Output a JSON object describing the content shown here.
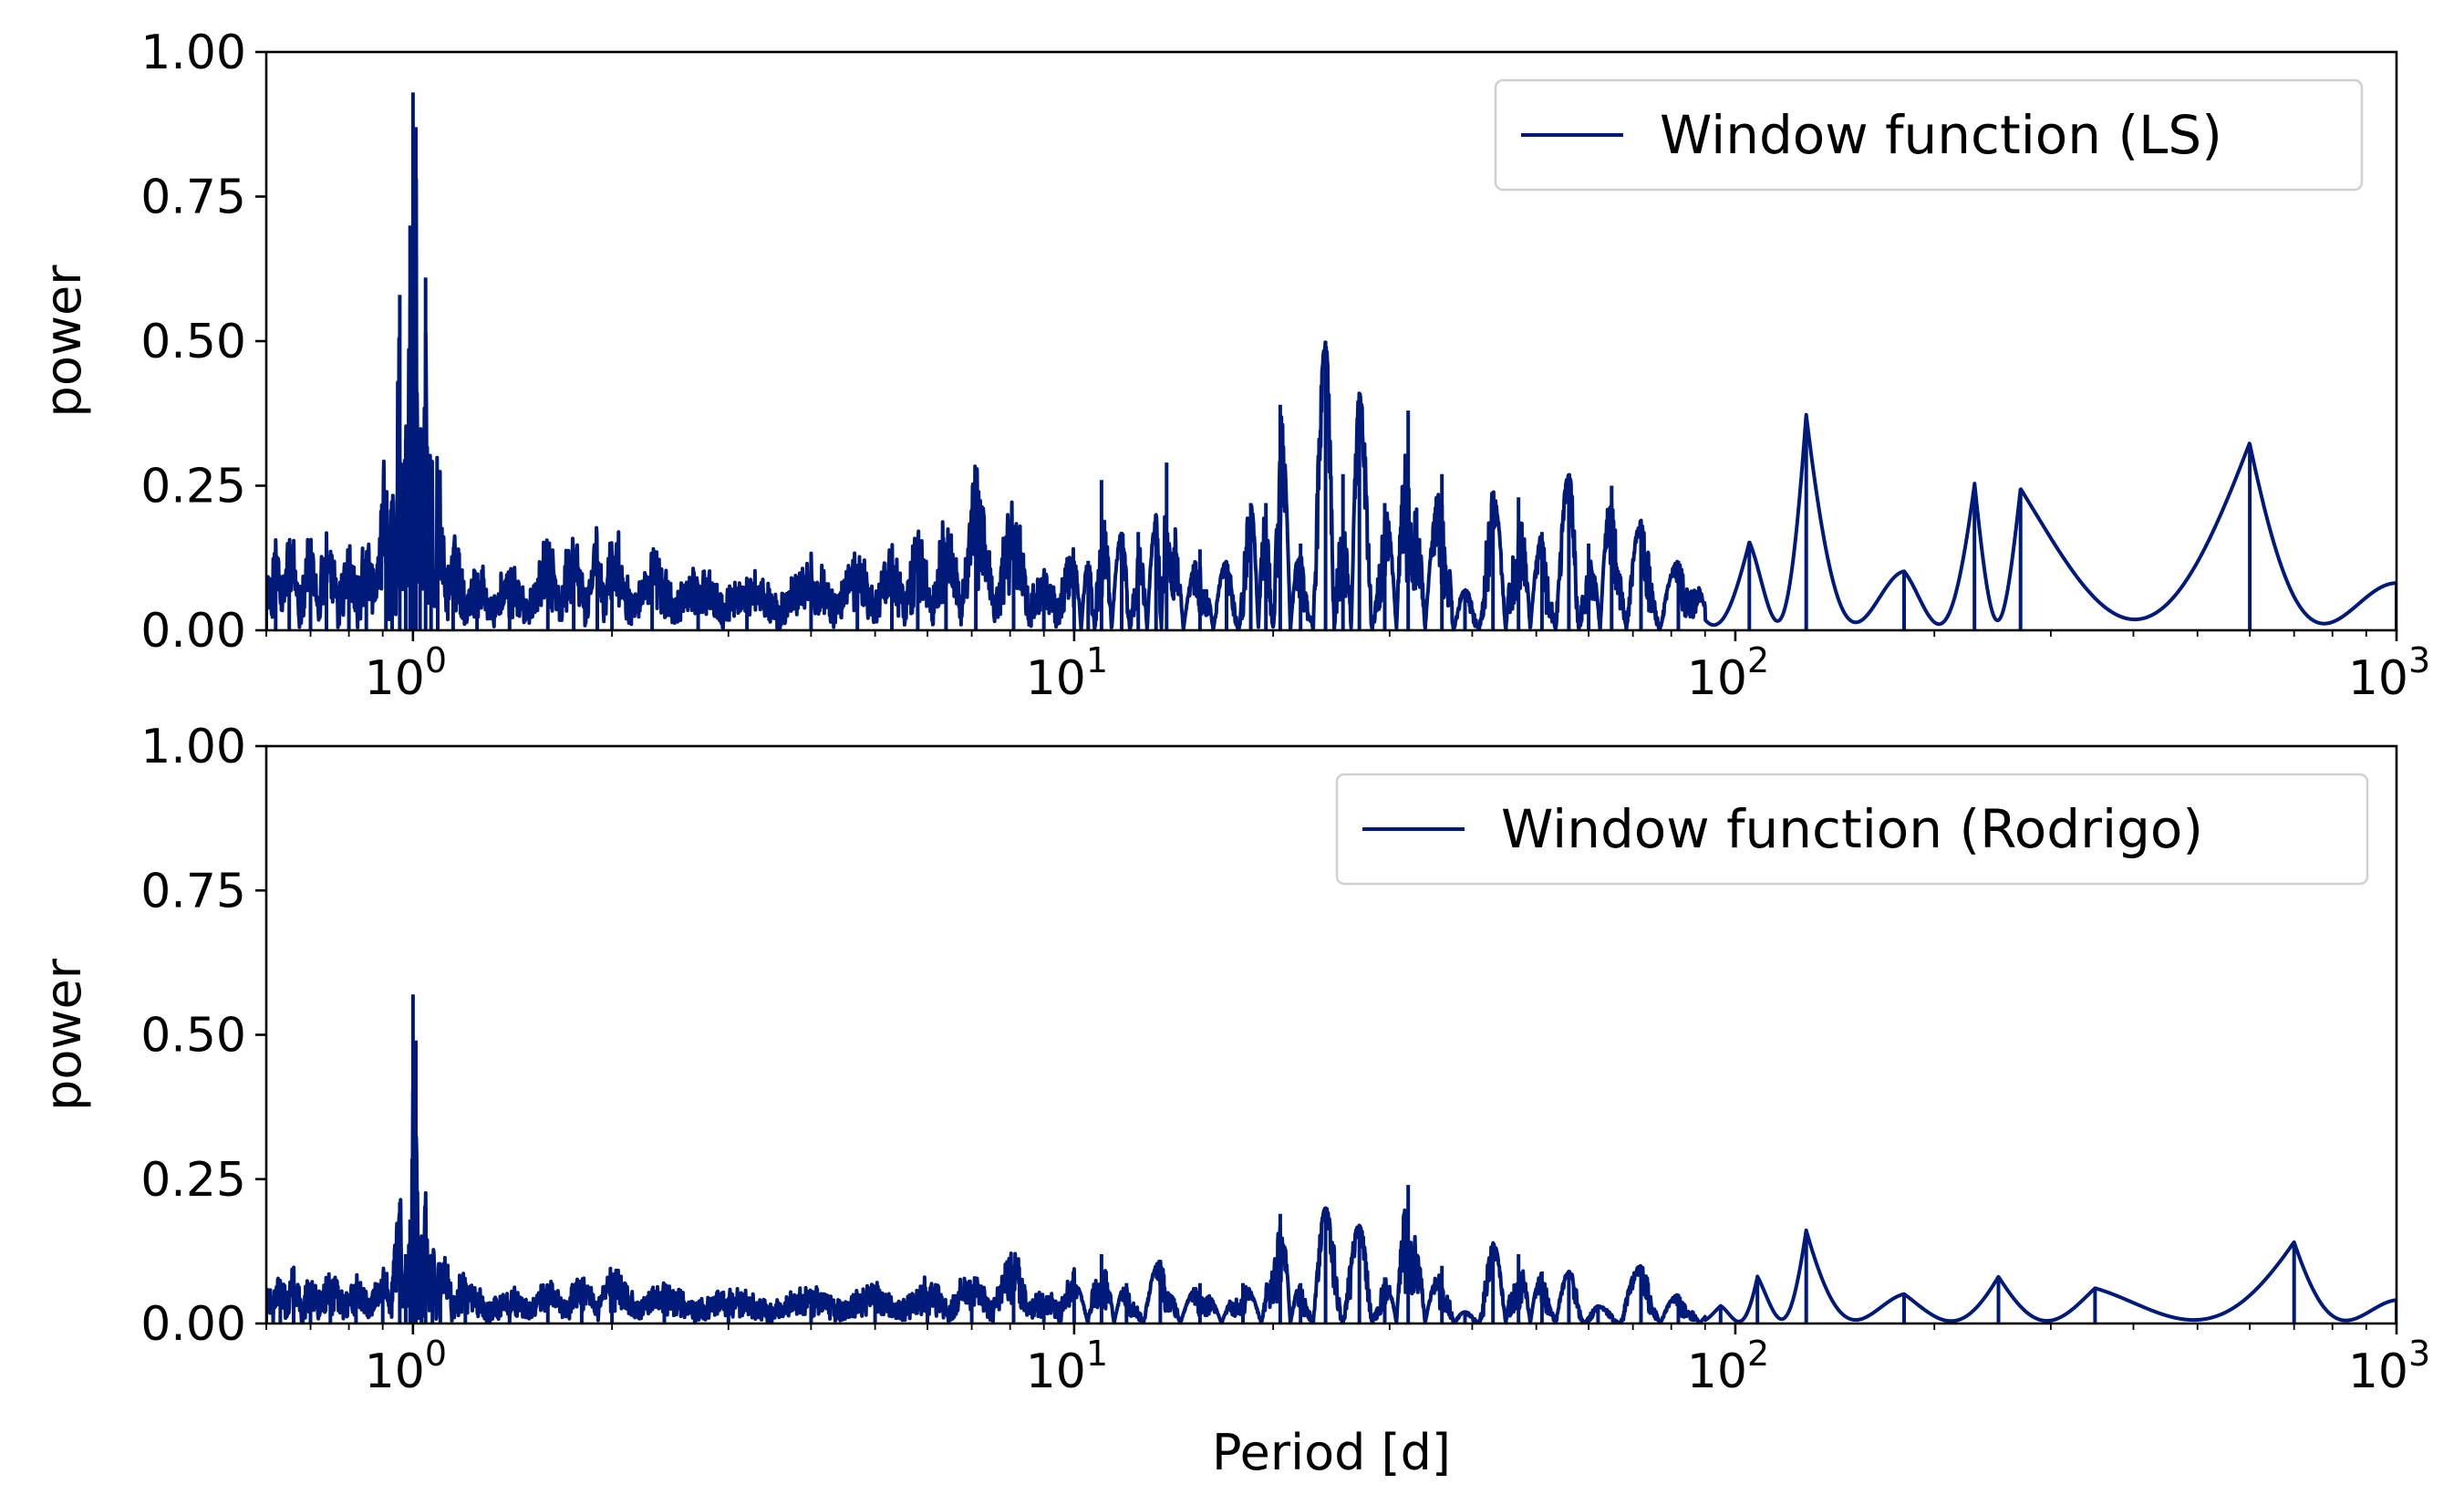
{
  "chart_data": [
    {
      "type": "line",
      "title": "",
      "xlabel": "",
      "ylabel": "power",
      "xscale": "log",
      "xlim": [
        0.6,
        1000
      ],
      "ylim": [
        0,
        1
      ],
      "yticks": [
        "0.00",
        "0.25",
        "0.50",
        "0.75",
        "1.00"
      ],
      "xticks": [
        {
          "base": "10",
          "exp": "0",
          "value": 1
        },
        {
          "base": "10",
          "exp": "1",
          "value": 10
        },
        {
          "base": "10",
          "exp": "2",
          "value": 100
        },
        {
          "base": "10",
          "exp": "3",
          "value": 1000
        }
      ],
      "legend_position": "upper right",
      "series": [
        {
          "name": "Window function (LS)",
          "color": "#001a7a",
          "peaks": [
            {
              "x": 0.6,
              "y": 0.05
            },
            {
              "x": 0.62,
              "y": 0.1
            },
            {
              "x": 0.65,
              "y": 0.12
            },
            {
              "x": 0.7,
              "y": 0.1
            },
            {
              "x": 0.74,
              "y": 0.12
            },
            {
              "x": 0.8,
              "y": 0.09
            },
            {
              "x": 0.85,
              "y": 0.1
            },
            {
              "x": 0.91,
              "y": 0.24
            },
            {
              "x": 0.93,
              "y": 0.22
            },
            {
              "x": 0.955,
              "y": 0.58
            },
            {
              "x": 0.975,
              "y": 0.33
            },
            {
              "x": 0.99,
              "y": 0.7
            },
            {
              "x": 1.0,
              "y": 0.93
            },
            {
              "x": 1.01,
              "y": 0.87
            },
            {
              "x": 1.025,
              "y": 0.32
            },
            {
              "x": 1.045,
              "y": 0.61
            },
            {
              "x": 1.065,
              "y": 0.26
            },
            {
              "x": 1.09,
              "y": 0.26
            },
            {
              "x": 1.15,
              "y": 0.11
            },
            {
              "x": 1.25,
              "y": 0.07
            },
            {
              "x": 1.4,
              "y": 0.06
            },
            {
              "x": 1.6,
              "y": 0.12
            },
            {
              "x": 1.75,
              "y": 0.13
            },
            {
              "x": 1.9,
              "y": 0.12
            },
            {
              "x": 2.0,
              "y": 0.13
            },
            {
              "x": 2.3,
              "y": 0.09
            },
            {
              "x": 2.7,
              "y": 0.07
            },
            {
              "x": 3.2,
              "y": 0.05
            },
            {
              "x": 4.0,
              "y": 0.08
            },
            {
              "x": 4.7,
              "y": 0.09
            },
            {
              "x": 5.3,
              "y": 0.11
            },
            {
              "x": 5.8,
              "y": 0.13
            },
            {
              "x": 6.4,
              "y": 0.15
            },
            {
              "x": 7.1,
              "y": 0.24
            },
            {
              "x": 8.1,
              "y": 0.18
            },
            {
              "x": 9.0,
              "y": 0.05
            },
            {
              "x": 10.0,
              "y": 0.12
            },
            {
              "x": 10.5,
              "y": 0.12
            },
            {
              "x": 11.0,
              "y": 0.26
            },
            {
              "x": 11.8,
              "y": 0.17
            },
            {
              "x": 12.5,
              "y": 0.17
            },
            {
              "x": 13.3,
              "y": 0.2
            },
            {
              "x": 13.8,
              "y": 0.29
            },
            {
              "x": 15.5,
              "y": 0.14
            },
            {
              "x": 17.0,
              "y": 0.12
            },
            {
              "x": 18.5,
              "y": 0.22
            },
            {
              "x": 19.5,
              "y": 0.22
            },
            {
              "x": 20.5,
              "y": 0.39
            },
            {
              "x": 22.0,
              "y": 0.15
            },
            {
              "x": 24.0,
              "y": 0.5
            },
            {
              "x": 25.5,
              "y": 0.27
            },
            {
              "x": 27.0,
              "y": 0.41
            },
            {
              "x": 29.5,
              "y": 0.22
            },
            {
              "x": 32.0,
              "y": 0.38
            },
            {
              "x": 36.0,
              "y": 0.27
            },
            {
              "x": 39.0,
              "y": 0.07
            },
            {
              "x": 43.0,
              "y": 0.24
            },
            {
              "x": 47.0,
              "y": 0.23
            },
            {
              "x": 51.0,
              "y": 0.17
            },
            {
              "x": 56.0,
              "y": 0.27
            },
            {
              "x": 60.0,
              "y": 0.15
            },
            {
              "x": 65.0,
              "y": 0.25
            },
            {
              "x": 72.0,
              "y": 0.19
            },
            {
              "x": 82.0,
              "y": 0.12
            },
            {
              "x": 105.0,
              "y": 0.15
            },
            {
              "x": 128.0,
              "y": 0.37
            },
            {
              "x": 180.0,
              "y": 0.1
            },
            {
              "x": 230.0,
              "y": 0.25
            },
            {
              "x": 270.0,
              "y": 0.24
            },
            {
              "x": 600.0,
              "y": 0.32
            },
            {
              "x": 1000.0,
              "y": 0.08
            }
          ]
        }
      ]
    },
    {
      "type": "line",
      "title": "",
      "xlabel": "Period [d]",
      "ylabel": "power",
      "xscale": "log",
      "xlim": [
        0.6,
        1000
      ],
      "ylim": [
        0,
        1
      ],
      "yticks": [
        "0.00",
        "0.25",
        "0.50",
        "0.75",
        "1.00"
      ],
      "xticks": [
        {
          "base": "10",
          "exp": "0",
          "value": 1
        },
        {
          "base": "10",
          "exp": "1",
          "value": 10
        },
        {
          "base": "10",
          "exp": "2",
          "value": 100
        },
        {
          "base": "10",
          "exp": "3",
          "value": 1000
        }
      ],
      "legend_position": "upper right",
      "series": [
        {
          "name": "Window function (Rodrigo)",
          "color": "#001a7a",
          "peaks": [
            {
              "x": 0.6,
              "y": 0.03
            },
            {
              "x": 0.63,
              "y": 0.05
            },
            {
              "x": 0.66,
              "y": 0.07
            },
            {
              "x": 0.7,
              "y": 0.05
            },
            {
              "x": 0.75,
              "y": 0.06
            },
            {
              "x": 0.82,
              "y": 0.04
            },
            {
              "x": 0.9,
              "y": 0.06
            },
            {
              "x": 0.955,
              "y": 0.21
            },
            {
              "x": 0.975,
              "y": 0.12
            },
            {
              "x": 0.99,
              "y": 0.18
            },
            {
              "x": 1.0,
              "y": 0.57
            },
            {
              "x": 1.01,
              "y": 0.49
            },
            {
              "x": 1.03,
              "y": 0.15
            },
            {
              "x": 1.045,
              "y": 0.2
            },
            {
              "x": 1.07,
              "y": 0.12
            },
            {
              "x": 1.1,
              "y": 0.1
            },
            {
              "x": 1.2,
              "y": 0.05
            },
            {
              "x": 1.4,
              "y": 0.03
            },
            {
              "x": 1.6,
              "y": 0.05
            },
            {
              "x": 1.8,
              "y": 0.06
            },
            {
              "x": 2.0,
              "y": 0.07
            },
            {
              "x": 2.4,
              "y": 0.04
            },
            {
              "x": 3.0,
              "y": 0.03
            },
            {
              "x": 4.0,
              "y": 0.03
            },
            {
              "x": 5.0,
              "y": 0.04
            },
            {
              "x": 6.0,
              "y": 0.05
            },
            {
              "x": 7.0,
              "y": 0.06
            },
            {
              "x": 8.1,
              "y": 0.1
            },
            {
              "x": 9.0,
              "y": 0.03
            },
            {
              "x": 10.0,
              "y": 0.07
            },
            {
              "x": 11.0,
              "y": 0.12
            },
            {
              "x": 12.0,
              "y": 0.07
            },
            {
              "x": 13.5,
              "y": 0.11
            },
            {
              "x": 15.5,
              "y": 0.07
            },
            {
              "x": 18.0,
              "y": 0.07
            },
            {
              "x": 20.5,
              "y": 0.19
            },
            {
              "x": 22.0,
              "y": 0.07
            },
            {
              "x": 24.0,
              "y": 0.2
            },
            {
              "x": 27.0,
              "y": 0.17
            },
            {
              "x": 29.5,
              "y": 0.08
            },
            {
              "x": 32.0,
              "y": 0.24
            },
            {
              "x": 36.0,
              "y": 0.1
            },
            {
              "x": 39.0,
              "y": 0.02
            },
            {
              "x": 43.0,
              "y": 0.14
            },
            {
              "x": 47.0,
              "y": 0.12
            },
            {
              "x": 51.0,
              "y": 0.09
            },
            {
              "x": 56.0,
              "y": 0.09
            },
            {
              "x": 62.0,
              "y": 0.03
            },
            {
              "x": 72.0,
              "y": 0.1
            },
            {
              "x": 82.0,
              "y": 0.05
            },
            {
              "x": 95.0,
              "y": 0.03
            },
            {
              "x": 108.0,
              "y": 0.08
            },
            {
              "x": 128.0,
              "y": 0.16
            },
            {
              "x": 180.0,
              "y": 0.05
            },
            {
              "x": 250.0,
              "y": 0.08
            },
            {
              "x": 350.0,
              "y": 0.06
            },
            {
              "x": 700.0,
              "y": 0.14
            },
            {
              "x": 1000.0,
              "y": 0.04
            }
          ]
        }
      ]
    }
  ]
}
